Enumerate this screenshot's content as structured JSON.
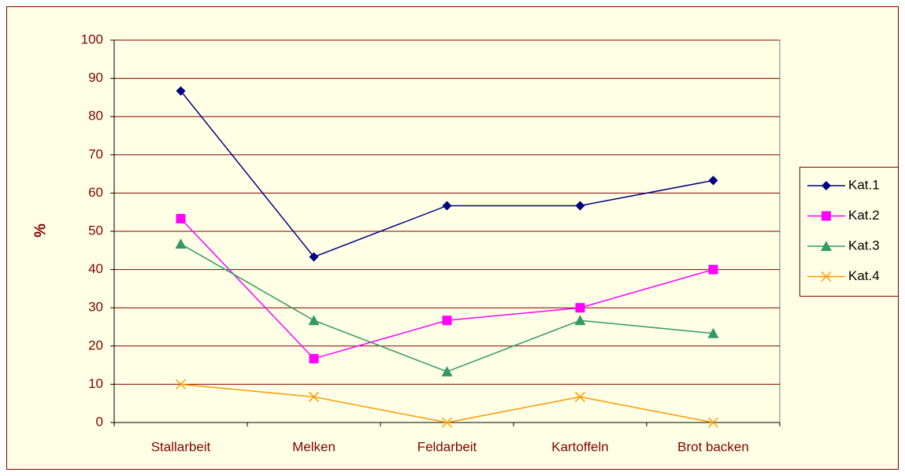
{
  "chart_data": {
    "type": "line",
    "ylabel": "%",
    "categories": [
      "Stallarbeit",
      "Melken",
      "Feldarbeit",
      "Kartoffeln",
      "Brot backen"
    ],
    "series": [
      {
        "name": "Kat.1",
        "color": "#000080",
        "marker": "diamond",
        "values": [
          86.7,
          43.3,
          56.7,
          56.7,
          63.3
        ]
      },
      {
        "name": "Kat.2",
        "color": "#FF00FF",
        "marker": "square",
        "values": [
          53.3,
          16.7,
          26.7,
          30,
          40
        ]
      },
      {
        "name": "Kat.3",
        "color": "#339966",
        "marker": "triangle",
        "values": [
          46.7,
          26.7,
          13.3,
          26.7,
          23.3
        ]
      },
      {
        "name": "Kat.4",
        "color": "#FF9900",
        "marker": "x",
        "values": [
          10,
          6.7,
          0,
          6.7,
          0
        ]
      }
    ],
    "ylim": [
      0,
      100
    ],
    "yticks": [
      0,
      10,
      20,
      30,
      40,
      50,
      60,
      70,
      80,
      90,
      100
    ],
    "grid": true,
    "legend": "right"
  }
}
